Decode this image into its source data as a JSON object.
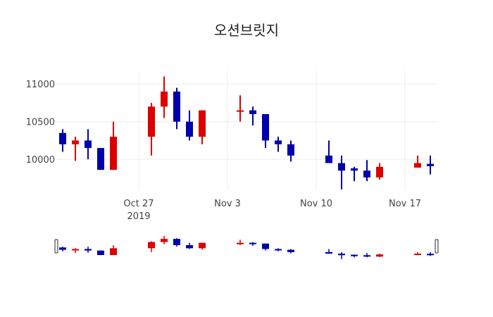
{
  "chart_data": {
    "type": "candlestick",
    "title": "오션브릿지",
    "xlabel": "",
    "ylabel": "",
    "increasing_color": "#dd0000",
    "decreasing_color": "#0000aa",
    "ylim": [
      9590,
      11180
    ],
    "xlim": [
      "2019-10-20.5",
      "2019-11-19.5"
    ],
    "y_ticks": [
      10000,
      10500,
      11000
    ],
    "y_tick_labels": [
      "10000",
      "10500",
      "11000"
    ],
    "x_ticks": [
      {
        "date": "2019-10-27",
        "label": "Oct 27",
        "sublabel": "2019"
      },
      {
        "date": "2019-11-03",
        "label": "Nov 3"
      },
      {
        "date": "2019-11-10",
        "label": "Nov 10"
      },
      {
        "date": "2019-11-17",
        "label": "Nov 17"
      }
    ],
    "grid": true,
    "rangeslider": true,
    "candles": [
      {
        "date": "2019-10-21",
        "open": 10350,
        "high": 10400,
        "low": 10100,
        "close": 10200
      },
      {
        "date": "2019-10-22",
        "open": 10200,
        "high": 10300,
        "low": 9980,
        "close": 10250
      },
      {
        "date": "2019-10-23",
        "open": 10250,
        "high": 10400,
        "low": 10000,
        "close": 10150
      },
      {
        "date": "2019-10-24",
        "open": 10150,
        "high": 10150,
        "low": 9860,
        "close": 9860
      },
      {
        "date": "2019-10-25",
        "open": 9860,
        "high": 10500,
        "low": 9860,
        "close": 10300
      },
      {
        "date": "2019-10-28",
        "open": 10300,
        "high": 10750,
        "low": 10050,
        "close": 10700
      },
      {
        "date": "2019-10-29",
        "open": 10700,
        "high": 11100,
        "low": 10550,
        "close": 10900
      },
      {
        "date": "2019-10-30",
        "open": 10900,
        "high": 10950,
        "low": 10400,
        "close": 10500
      },
      {
        "date": "2019-10-31",
        "open": 10500,
        "high": 10650,
        "low": 10250,
        "close": 10300
      },
      {
        "date": "2019-11-01",
        "open": 10300,
        "high": 10650,
        "low": 10200,
        "close": 10650
      },
      {
        "date": "2019-11-04",
        "open": 10640,
        "high": 10850,
        "low": 10500,
        "close": 10650
      },
      {
        "date": "2019-11-05",
        "open": 10650,
        "high": 10700,
        "low": 10450,
        "close": 10600
      },
      {
        "date": "2019-11-06",
        "open": 10600,
        "high": 10600,
        "low": 10150,
        "close": 10250
      },
      {
        "date": "2019-11-07",
        "open": 10250,
        "high": 10300,
        "low": 10100,
        "close": 10200
      },
      {
        "date": "2019-11-08",
        "open": 10200,
        "high": 10250,
        "low": 9970,
        "close": 10050
      },
      {
        "date": "2019-11-11",
        "open": 10050,
        "high": 10250,
        "low": 9950,
        "close": 9950
      },
      {
        "date": "2019-11-12",
        "open": 9950,
        "high": 10050,
        "low": 9600,
        "close": 9850
      },
      {
        "date": "2019-11-13",
        "open": 9880,
        "high": 9900,
        "low": 9710,
        "close": 9850
      },
      {
        "date": "2019-11-14",
        "open": 9850,
        "high": 9990,
        "low": 9710,
        "close": 9760
      },
      {
        "date": "2019-11-15",
        "open": 9760,
        "high": 9950,
        "low": 9730,
        "close": 9900
      },
      {
        "date": "2019-11-18",
        "open": 9890,
        "high": 10050,
        "low": 9890,
        "close": 9950
      },
      {
        "date": "2019-11-19",
        "open": 9940,
        "high": 10050,
        "low": 9800,
        "close": 9910
      }
    ]
  }
}
